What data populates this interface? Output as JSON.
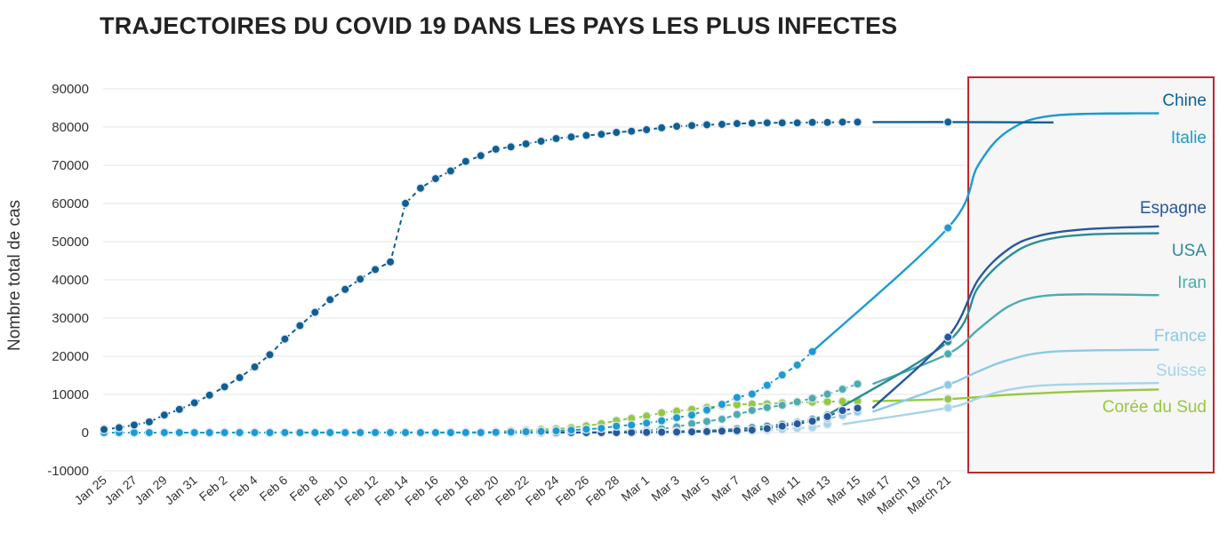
{
  "chart_data": {
    "type": "line",
    "title": "TRAJECTOIRES DU COVID 19 DANS LES PAYS LES PLUS INFECTES",
    "xlabel": "",
    "ylabel": "Nombre total de cas",
    "ylim": [
      -10000,
      90000
    ],
    "yticks": [
      90000,
      80000,
      70000,
      60000,
      50000,
      40000,
      30000,
      20000,
      10000,
      0,
      -10000
    ],
    "xtick_labels": [
      "Jan 25",
      "Jan 27",
      "Jan 29",
      "Jan 31",
      "Feb 2",
      "Feb 4",
      "Feb 6",
      "Feb 8",
      "Feb 10",
      "Feb 12",
      "Feb 14",
      "Feb 16",
      "Feb 18",
      "Feb 20",
      "Feb 22",
      "Feb 24",
      "Feb 26",
      "Feb 28",
      "Mar 1",
      "Mar 3",
      "Mar 5",
      "Mar 7",
      "Mar 9",
      "Mar 11",
      "Mar 13",
      "Mar 15",
      "Mar 17",
      "March 19",
      "March 21"
    ],
    "grid": true,
    "x_start": "Jan 25",
    "series": [
      {
        "name": "Chine",
        "color": "#0f5f94",
        "values": [
          830,
          1300,
          2000,
          2800,
          4600,
          6100,
          7800,
          9800,
          12000,
          14400,
          17200,
          20400,
          24500,
          28000,
          31500,
          34800,
          37500,
          40200,
          42700,
          44700,
          60000,
          64000,
          66500,
          68500,
          71000,
          72500,
          74200,
          74800,
          75600,
          76300,
          77000,
          77400,
          77800,
          78100,
          78600,
          78900,
          79300,
          79800,
          80200,
          80400,
          80600,
          80700,
          80900,
          81000,
          81100,
          81100,
          81100,
          81200,
          81200,
          81300,
          81300
        ],
        "projection": [
          [
            51,
            81300
          ],
          [
            56,
            81300
          ],
          [
            63,
            81200
          ]
        ]
      },
      {
        "name": "Italie",
        "color": "#1a9bd1",
        "values": [
          0,
          0,
          0,
          0,
          0,
          0,
          0,
          0,
          0,
          0,
          0,
          0,
          0,
          0,
          0,
          0,
          0,
          0,
          0,
          0,
          0,
          0,
          0,
          0,
          3,
          20,
          80,
          150,
          230,
          320,
          450,
          650,
          890,
          1130,
          1700,
          2000,
          2500,
          3100,
          3900,
          4600,
          5900,
          7400,
          9200,
          10100,
          12400,
          15100,
          17700,
          21200
        ],
        "projection": [
          [
            47,
            21200
          ],
          [
            56,
            53600
          ],
          [
            58,
            70000
          ],
          [
            60,
            79000
          ],
          [
            63,
            83000
          ],
          [
            70,
            83600
          ]
        ]
      },
      {
        "name": "Espagne",
        "color": "#27589c",
        "values": [
          0,
          0,
          0,
          0,
          0,
          0,
          0,
          0,
          0,
          0,
          0,
          0,
          0,
          0,
          0,
          0,
          0,
          0,
          0,
          0,
          0,
          0,
          0,
          0,
          0,
          0,
          0,
          0,
          0,
          0,
          0,
          0,
          0,
          0,
          0,
          45,
          70,
          114,
          150,
          200,
          260,
          400,
          500,
          670,
          1070,
          1700,
          2300,
          3000,
          4200,
          5800,
          6400
        ],
        "projection": [
          [
            51,
            6400
          ],
          [
            56,
            25000
          ],
          [
            58,
            40000
          ],
          [
            60,
            48000
          ],
          [
            62,
            51500
          ],
          [
            65,
            53200
          ],
          [
            70,
            54000
          ]
        ]
      },
      {
        "name": "USA",
        "color": "#2b8d96",
        "values": [
          1,
          1,
          2,
          3,
          5,
          6,
          7,
          8,
          11,
          12,
          13,
          13,
          14,
          15,
          15,
          15,
          15,
          15,
          15,
          15,
          15,
          15,
          15,
          15,
          15,
          15,
          15,
          35,
          35,
          53,
          59,
          62,
          70,
          80,
          100,
          120,
          160,
          220,
          330,
          430,
          540,
          700,
          1000,
          1300,
          1700,
          2200,
          2700,
          3500,
          4600
        ],
        "projection": [
          [
            48,
            4600
          ],
          [
            56,
            23800
          ],
          [
            58,
            38000
          ],
          [
            60,
            46000
          ],
          [
            62,
            50000
          ],
          [
            65,
            51800
          ],
          [
            70,
            52200
          ]
        ]
      },
      {
        "name": "Iran",
        "color": "#4aacaf",
        "values": [
          0,
          0,
          0,
          0,
          0,
          0,
          0,
          0,
          0,
          0,
          0,
          0,
          0,
          0,
          0,
          0,
          0,
          0,
          0,
          0,
          0,
          0,
          0,
          0,
          0,
          0,
          2,
          5,
          18,
          28,
          43,
          61,
          95,
          139,
          245,
          388,
          593,
          978,
          1501,
          2336,
          2922,
          3513,
          4747,
          5823,
          6566,
          7161,
          8042,
          9000,
          10075,
          11364,
          12729
        ],
        "projection": [
          [
            51,
            12729
          ],
          [
            56,
            20600
          ],
          [
            58,
            27000
          ],
          [
            60,
            33000
          ],
          [
            62,
            35600
          ],
          [
            65,
            36200
          ],
          [
            70,
            36000
          ]
        ]
      },
      {
        "name": "France",
        "color": "#8cc9e6",
        "values": [
          0,
          0,
          0,
          3,
          5,
          6,
          6,
          6,
          6,
          6,
          6,
          6,
          11,
          11,
          11,
          11,
          11,
          11,
          11,
          12,
          12,
          12,
          12,
          12,
          12,
          12,
          12,
          12,
          12,
          12,
          12,
          12,
          18,
          38,
          57,
          100,
          130,
          191,
          212,
          285,
          423,
          613,
          949,
          1126,
          1412,
          1784,
          2281,
          2876,
          3661,
          4499,
          5423
        ],
        "projection": [
          [
            51,
            5423
          ],
          [
            56,
            12500
          ],
          [
            58,
            16000
          ],
          [
            60,
            19000
          ],
          [
            63,
            21200
          ],
          [
            70,
            21700
          ]
        ]
      },
      {
        "name": "Suisse",
        "color": "#a6d4ea",
        "values": [
          0,
          0,
          0,
          0,
          0,
          0,
          0,
          0,
          0,
          0,
          0,
          0,
          0,
          0,
          0,
          0,
          0,
          0,
          0,
          0,
          0,
          0,
          0,
          0,
          0,
          0,
          0,
          0,
          0,
          0,
          1,
          1,
          8,
          15,
          18,
          24,
          30,
          56,
          87,
          120,
          210,
          280,
          340,
          490,
          650,
          860,
          1140,
          1360,
          2200
        ],
        "projection": [
          [
            49,
            2200
          ],
          [
            56,
            6500
          ],
          [
            58,
            9000
          ],
          [
            60,
            11200
          ],
          [
            63,
            12500
          ],
          [
            70,
            13000
          ]
        ]
      },
      {
        "name": "Corée du Sud",
        "color": "#95c93d",
        "values": [
          2,
          3,
          3,
          4,
          4,
          6,
          11,
          11,
          15,
          16,
          19,
          23,
          24,
          24,
          25,
          27,
          28,
          28,
          28,
          28,
          28,
          29,
          30,
          31,
          51,
          104,
          204,
          433,
          602,
          833,
          977,
          1261,
          1766,
          2337,
          3150,
          3736,
          4335,
          5186,
          5621,
          6088,
          6593,
          7041,
          7314,
          7478,
          7513,
          7755,
          7869,
          7979,
          8086,
          8162,
          8236
        ],
        "projection": [
          [
            51,
            8236
          ],
          [
            56,
            8800
          ],
          [
            60,
            9900
          ],
          [
            65,
            10800
          ],
          [
            70,
            11300
          ]
        ]
      }
    ]
  }
}
